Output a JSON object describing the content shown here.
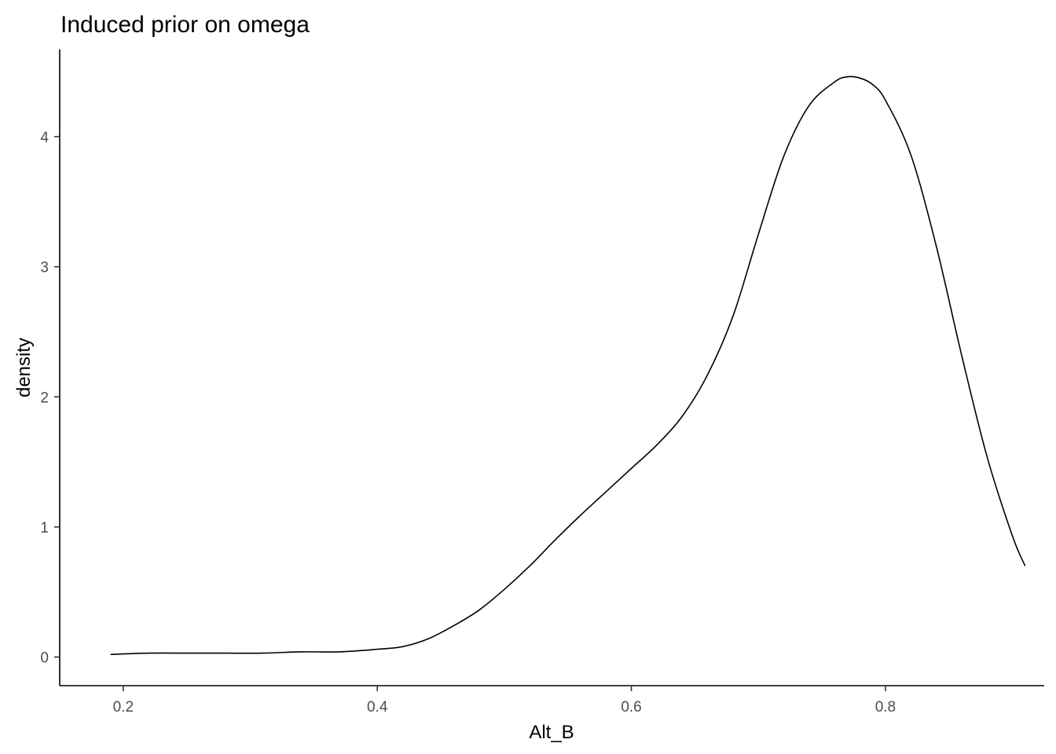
{
  "chart_data": {
    "type": "line",
    "title": "Induced prior on omega",
    "xlabel": "Alt_B",
    "ylabel": "density",
    "xlim": [
      0.15,
      0.925
    ],
    "ylim": [
      -0.22,
      4.67
    ],
    "x_ticks": [
      0.2,
      0.4,
      0.6,
      0.8
    ],
    "x_tick_labels": [
      "0.2",
      "0.4",
      "0.6",
      "0.8"
    ],
    "y_ticks": [
      0,
      1,
      2,
      3,
      4
    ],
    "y_tick_labels": [
      "0",
      "1",
      "2",
      "3",
      "4"
    ],
    "grid": false,
    "legend": "none",
    "series": [
      {
        "color": "#000000",
        "x": [
          0.19,
          0.22,
          0.25,
          0.28,
          0.31,
          0.34,
          0.37,
          0.4,
          0.42,
          0.44,
          0.46,
          0.48,
          0.5,
          0.52,
          0.54,
          0.56,
          0.58,
          0.6,
          0.62,
          0.64,
          0.66,
          0.68,
          0.7,
          0.72,
          0.74,
          0.76,
          0.77,
          0.78,
          0.79,
          0.8,
          0.82,
          0.84,
          0.86,
          0.88,
          0.9,
          0.91
        ],
        "y": [
          0.02,
          0.03,
          0.03,
          0.03,
          0.03,
          0.04,
          0.04,
          0.06,
          0.08,
          0.14,
          0.24,
          0.36,
          0.52,
          0.7,
          0.9,
          1.09,
          1.27,
          1.45,
          1.63,
          1.85,
          2.17,
          2.62,
          3.25,
          3.85,
          4.24,
          4.42,
          4.46,
          4.45,
          4.4,
          4.28,
          3.86,
          3.16,
          2.32,
          1.54,
          0.93,
          0.7
        ]
      }
    ]
  }
}
